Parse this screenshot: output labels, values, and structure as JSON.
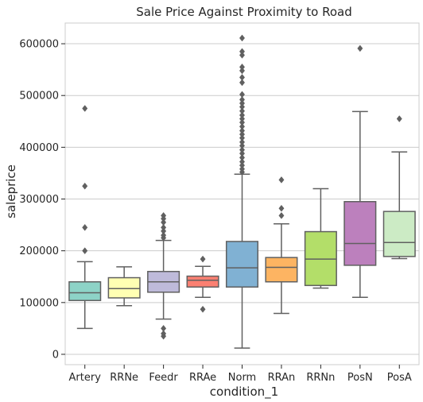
{
  "chart_data": {
    "type": "box",
    "title": "Sale Price Against Proximity to Road",
    "xlabel": "condition_1",
    "ylabel": "saleprice",
    "ylim": [
      -20000,
      640000
    ],
    "yticks": [
      0,
      100000,
      200000,
      300000,
      400000,
      500000,
      600000
    ],
    "grid": "horizontal",
    "categories": [
      "Artery",
      "RRNe",
      "Feedr",
      "RRAe",
      "Norm",
      "RRAn",
      "RRNn",
      "PosN",
      "PosA"
    ],
    "colors": [
      "#8dd3c7",
      "#ffffb3",
      "#bebada",
      "#fb8072",
      "#80b1d3",
      "#fdb462",
      "#b3de69",
      "#bc80bd",
      "#ccebc5"
    ],
    "box_stats": [
      {
        "category": "Artery",
        "whisker_low": 50000,
        "q1": 104000,
        "median": 119000,
        "q3": 140000,
        "whisker_high": 179000,
        "outliers": [
          200000,
          245000,
          325000,
          475000
        ]
      },
      {
        "category": "RRNe",
        "whisker_low": 94000,
        "q1": 109000,
        "median": 127000,
        "q3": 148000,
        "whisker_high": 169000,
        "outliers": []
      },
      {
        "category": "Feedr",
        "whisker_low": 68000,
        "q1": 120000,
        "median": 140000,
        "q3": 160000,
        "whisker_high": 220000,
        "outliers": [
          35000,
          40000,
          50000,
          225000,
          230000,
          238000,
          245000,
          255000,
          262000,
          268000
        ]
      },
      {
        "category": "RRAe",
        "whisker_low": 110000,
        "q1": 130000,
        "median": 143000,
        "q3": 151000,
        "whisker_high": 170000,
        "outliers": [
          87000,
          184000
        ]
      },
      {
        "category": "Norm",
        "whisker_low": 12000,
        "q1": 130000,
        "median": 167000,
        "q3": 218000,
        "whisker_high": 348000,
        "outliers": [
          352000,
          358000,
          365000,
          372000,
          380000,
          388000,
          395000,
          403000,
          410000,
          418000,
          425000,
          432000,
          440000,
          448000,
          455000,
          462000,
          470000,
          478000,
          485000,
          492000,
          502000,
          525000,
          535000,
          548000,
          555000,
          578000,
          585000,
          611000
        ]
      },
      {
        "category": "RRAn",
        "whisker_low": 79000,
        "q1": 140000,
        "median": 168000,
        "q3": 187000,
        "whisker_high": 252000,
        "outliers": [
          268000,
          282000,
          337000
        ]
      },
      {
        "category": "RRNn",
        "whisker_low": 128000,
        "q1": 133000,
        "median": 184000,
        "q3": 237000,
        "whisker_high": 320000,
        "outliers": []
      },
      {
        "category": "PosN",
        "whisker_low": 110000,
        "q1": 172000,
        "median": 214000,
        "q3": 295000,
        "whisker_high": 469000,
        "outliers": [
          591000
        ]
      },
      {
        "category": "PosA",
        "whisker_low": 185000,
        "q1": 189000,
        "median": 216000,
        "q3": 276000,
        "whisker_high": 391000,
        "outliers": [
          455000
        ]
      }
    ]
  }
}
